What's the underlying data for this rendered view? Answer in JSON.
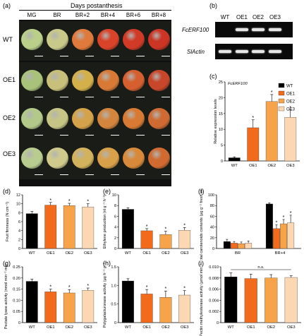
{
  "panel_labels": {
    "a": "(a)",
    "b": "(b)",
    "c": "(c)",
    "d": "(d)",
    "e": "(e)",
    "f": "(f)",
    "g": "(g)",
    "h": "(h)",
    "i": "(i)"
  },
  "panel_a": {
    "header": "Days postanthesis",
    "stages": [
      "MG",
      "BR",
      "BR+2",
      "BR+4",
      "BR+6",
      "BR+8"
    ],
    "lines": [
      "WT",
      "OE1",
      "OE2",
      "OE3"
    ],
    "fruit_colors": [
      [
        "#b9cf8a",
        "#c9c98a",
        "#e07a3c",
        "#d8432a",
        "#d03a26",
        "#cc3524"
      ],
      [
        "#a8c27a",
        "#c8c07a",
        "#d4b04a",
        "#d87a36",
        "#d55f2e",
        "#c8462a"
      ],
      [
        "#b2c98a",
        "#c6c585",
        "#d4a24a",
        "#d3853e",
        "#d87a34",
        "#cf6a32"
      ],
      [
        "#b8cc90",
        "#cfca8c",
        "#d2b25c",
        "#d9a04a",
        "#d88a3a",
        "#d06a30"
      ]
    ]
  },
  "panel_b": {
    "lanes": [
      "WT",
      "OE1",
      "OE2",
      "OE3"
    ],
    "genes": [
      "FcERF100",
      "SlActin"
    ],
    "bands": [
      [
        false,
        true,
        true,
        true
      ],
      [
        true,
        true,
        true,
        true
      ]
    ]
  },
  "colors": {
    "WT": "#000000",
    "OE1": "#f26a1b",
    "OE2": "#f7a34a",
    "OE3": "#fbd7b3"
  },
  "charts": [
    {
      "key": "c",
      "type": "bar",
      "title": "FcERF100",
      "ylabel": "Relative expression levels",
      "categories": [
        "WT",
        "OE1",
        "OE2",
        "OE3"
      ],
      "values": [
        1,
        10.5,
        18.8,
        13.8
      ],
      "errors": [
        0.3,
        2.5,
        2.2,
        2.3
      ],
      "ylim": [
        0,
        25
      ],
      "yticks": [
        "0",
        "5",
        "10",
        "15",
        "20",
        "25"
      ],
      "stars": [
        "",
        "*",
        "*",
        "*"
      ],
      "legend": [
        "WT",
        "OE1",
        "OE2",
        "OE3"
      ]
    },
    {
      "key": "d",
      "type": "bar",
      "ylabel": "Fruit firmness (N cm⁻²)",
      "categories": [
        "WT",
        "OE1",
        "OE2",
        "OE3"
      ],
      "values": [
        7.8,
        9.7,
        9.6,
        9.3
      ],
      "errors": [
        0.5,
        0.6,
        0.5,
        0.7
      ],
      "ylim": [
        0,
        12
      ],
      "yticks": [
        "0",
        "2",
        "4",
        "6",
        "8",
        "10",
        "12"
      ],
      "stars": [
        "",
        "*",
        "*",
        "*"
      ]
    },
    {
      "key": "e",
      "type": "bar",
      "ylabel": "Ethylene production (nl g⁻¹ h⁻¹)",
      "categories": [
        "WT",
        "OE1",
        "OE2",
        "OE3"
      ],
      "values": [
        7.3,
        3.3,
        2.6,
        3.4
      ],
      "errors": [
        0.3,
        0.4,
        0.6,
        0.5
      ],
      "ylim": [
        0,
        10
      ],
      "yticks": [
        "0",
        "2",
        "4",
        "6",
        "8",
        "10"
      ],
      "stars": [
        "",
        "*",
        "*",
        "*"
      ]
    },
    {
      "key": "f",
      "type": "grouped_bar",
      "ylabel": "Total carotenoids contents (μg g⁻¹ fresh weight)",
      "groups": [
        "BR",
        "BR+4"
      ],
      "series": [
        {
          "name": "WT",
          "values": [
            13,
            83
          ],
          "errors": [
            4,
            2
          ]
        },
        {
          "name": "OE1",
          "values": [
            10,
            37
          ],
          "errors": [
            3,
            7
          ]
        },
        {
          "name": "OE2",
          "values": [
            9,
            46
          ],
          "errors": [
            3,
            8
          ]
        },
        {
          "name": "OE3",
          "values": [
            10,
            48
          ],
          "errors": [
            4,
            14
          ]
        }
      ],
      "stars": [
        [
          "",
          "",
          "",
          ""
        ],
        [
          "",
          "*",
          "*",
          "*"
        ]
      ],
      "ylim": [
        0,
        100
      ],
      "yticks": [
        "0",
        "20",
        "40",
        "60",
        "80",
        "100"
      ]
    },
    {
      "key": "g",
      "type": "bar",
      "ylabel": "Pectate lyase activity (nmol min⁻¹ mg⁻¹)",
      "categories": [
        "WT",
        "OE1",
        "OE2",
        "OE3"
      ],
      "values": [
        0.185,
        0.138,
        0.133,
        0.145
      ],
      "errors": [
        0.01,
        0.012,
        0.015,
        0.01
      ],
      "ylim": [
        0,
        0.25
      ],
      "yticks": [
        "0",
        "0.05",
        "0.10",
        "0.15",
        "0.20",
        "0.25"
      ],
      "stars": [
        "",
        "*",
        "*",
        "*"
      ]
    },
    {
      "key": "h",
      "type": "bar",
      "ylabel": "Polygalacturonase activity (μg h⁻¹ g⁻¹)",
      "categories": [
        "WT",
        "OE1",
        "OE2",
        "OE3"
      ],
      "values": [
        1.12,
        0.77,
        0.68,
        0.74
      ],
      "errors": [
        0.06,
        0.12,
        0.17,
        0.12
      ],
      "ylim": [
        0,
        1.5
      ],
      "yticks": [
        "0",
        "0.5",
        "1.0",
        "1.5"
      ],
      "stars": [
        "",
        "*",
        "*",
        "*"
      ]
    },
    {
      "key": "i",
      "type": "bar",
      "ylabel": "Pectin methylesterase activity (μmol min⁻¹ mg⁻¹)",
      "categories": [
        "WT",
        "OE1",
        "OE2",
        "OE3"
      ],
      "values": [
        0.0082,
        0.0079,
        0.008,
        0.0081
      ],
      "errors": [
        0.0007,
        0.0008,
        0.0006,
        0.0003
      ],
      "ylim": [
        0,
        0.01
      ],
      "yticks": [
        "0",
        "0.002",
        "0.004",
        "0.006",
        "0.008",
        "0.010"
      ],
      "stars": [
        "",
        "",
        "",
        ""
      ],
      "annotation": "n.s."
    }
  ]
}
